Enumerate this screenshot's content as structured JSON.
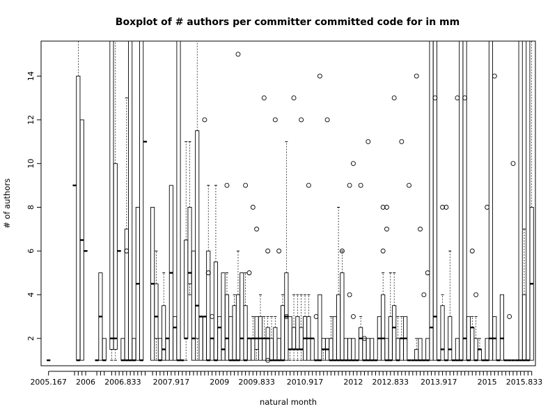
{
  "chart_data": {
    "type": "boxplot",
    "title": "Boxplot of # authors per committer committed code for in mm",
    "xlabel": "natural month",
    "ylabel": "# of authors",
    "ylim": [
      0.75,
      15.6
    ],
    "y_ticks": [
      2,
      4,
      6,
      8,
      10,
      12,
      14
    ],
    "x_tick_labels": [
      "2005.167",
      "2006",
      "2006.833",
      "2007.917",
      "2009",
      "2009.833",
      "2010.917",
      "2012",
      "2012.833",
      "2013.917",
      "2015",
      "2015.833"
    ],
    "outlier_style": "open-circle",
    "boxes": [
      {
        "month": "2005.167",
        "min": 1,
        "q1": 1,
        "median": 1,
        "q3": 1,
        "max": 1
      },
      {
        "month": "2005.75",
        "min": 9,
        "q1": 9,
        "median": 9,
        "q3": 9,
        "max": 9
      },
      {
        "month": "2005.833",
        "min": 1,
        "q1": 1,
        "median": 1,
        "q3": 14,
        "max": 15.6
      },
      {
        "month": "2005.917",
        "min": 1,
        "q1": 1,
        "median": 6.5,
        "q3": 12,
        "max": 12
      },
      {
        "month": "2006",
        "min": 6,
        "q1": 6,
        "median": 6,
        "q3": 6,
        "max": 6
      },
      {
        "month": "2006.25",
        "min": 1,
        "q1": 1,
        "median": 1,
        "q3": 1,
        "max": 1
      },
      {
        "month": "2006.333",
        "min": 1,
        "q1": 1,
        "median": 3,
        "q3": 5,
        "max": 5
      },
      {
        "month": "2006.417",
        "min": 1,
        "q1": 1,
        "median": 1,
        "q3": 2,
        "max": 2
      },
      {
        "month": "2006.583",
        "min": 1,
        "q1": 1.5,
        "median": 2,
        "q3": 15.6,
        "max": 15.6
      },
      {
        "month": "2006.667",
        "min": 1,
        "q1": 1.5,
        "median": 2,
        "q3": 10,
        "max": 15.6
      },
      {
        "month": "2006.75",
        "min": 6,
        "q1": 6,
        "median": 6,
        "q3": 6,
        "max": 6
      },
      {
        "month": "2006.833",
        "min": 1,
        "q1": 1,
        "median": 1,
        "q3": 2,
        "max": 2
      },
      {
        "month": "2006.917",
        "min": 1,
        "q1": 1,
        "median": 1,
        "q3": 7,
        "max": 13,
        "outliers": [
          6
        ]
      },
      {
        "month": "2007",
        "min": 1,
        "q1": 1,
        "median": 1,
        "q3": 15.6,
        "max": 15.6
      },
      {
        "month": "2007.083",
        "min": 1,
        "q1": 1,
        "median": 1,
        "q3": 2,
        "max": 2
      },
      {
        "month": "2007.167",
        "min": 1,
        "q1": 1,
        "median": 4.5,
        "q3": 8,
        "max": 8
      },
      {
        "month": "2007.25",
        "min": 1,
        "q1": 1,
        "median": 1,
        "q3": 15.6,
        "max": 15.6
      },
      {
        "month": "2007.333",
        "min": 11,
        "q1": 11,
        "median": 11,
        "q3": 11,
        "max": 11
      },
      {
        "month": "2007.5",
        "min": 1,
        "q1": 1,
        "median": 4.5,
        "q3": 8,
        "max": 8
      },
      {
        "month": "2007.583",
        "min": 1,
        "q1": 2,
        "median": 3,
        "q3": 4.5,
        "max": 6
      },
      {
        "month": "2007.667",
        "min": 1,
        "q1": 1,
        "median": 1,
        "q3": 2,
        "max": 2
      },
      {
        "month": "2007.75",
        "min": 1,
        "q1": 1,
        "median": 1.5,
        "q3": 3.5,
        "max": 5
      },
      {
        "month": "2007.833",
        "min": 1,
        "q1": 1,
        "median": 2,
        "q3": 2,
        "max": 2
      },
      {
        "month": "2007.917",
        "min": 1,
        "q1": 1,
        "median": 5,
        "q3": 9,
        "max": 9
      },
      {
        "month": "2008",
        "min": 1,
        "q1": 1,
        "median": 2.5,
        "q3": 3,
        "max": 3
      },
      {
        "month": "2008.083",
        "min": 1,
        "q1": 1,
        "median": 1,
        "q3": 15.6,
        "max": 15.6
      },
      {
        "month": "2008.167",
        "min": 1,
        "q1": 1,
        "median": 1,
        "q3": 1,
        "max": 1
      },
      {
        "month": "2008.25",
        "min": 1,
        "q1": 2,
        "median": 2,
        "q3": 6.5,
        "max": 11
      },
      {
        "month": "2008.333",
        "min": 4,
        "q1": 4.5,
        "median": 5,
        "q3": 8,
        "max": 11
      },
      {
        "month": "2008.417",
        "min": 1,
        "q1": 1,
        "median": 2,
        "q3": 6,
        "max": 6
      },
      {
        "month": "2008.5",
        "min": 1,
        "q1": 2,
        "median": 3.5,
        "q3": 11.5,
        "max": 15.6
      },
      {
        "month": "2008.583",
        "min": 1,
        "q1": 1,
        "median": 3,
        "q3": 3,
        "max": 3
      },
      {
        "month": "2008.667",
        "min": 1,
        "q1": 1,
        "median": 3,
        "q3": 3,
        "max": 3,
        "outliers": [
          12
        ]
      },
      {
        "month": "2008.75",
        "min": 1,
        "q1": 1,
        "median": 1,
        "q3": 6,
        "max": 9,
        "outliers": [
          5
        ]
      },
      {
        "month": "2008.833",
        "min": 1,
        "q1": 1,
        "median": 2,
        "q3": 2,
        "max": 2,
        "outliers": [
          3
        ]
      },
      {
        "month": "2008.917",
        "min": 1,
        "q1": 1,
        "median": 1,
        "q3": 5.5,
        "max": 9
      },
      {
        "month": "2009",
        "min": 1,
        "q1": 1,
        "median": 2.5,
        "q3": 3,
        "max": 3
      },
      {
        "month": "2009.083",
        "min": 1,
        "q1": 1,
        "median": 1.5,
        "q3": 5,
        "max": 5
      },
      {
        "month": "2009.167",
        "min": 1,
        "q1": 1,
        "median": 2,
        "q3": 4,
        "max": 5,
        "outliers": [
          9
        ]
      },
      {
        "month": "2009.25",
        "min": 1,
        "q1": 1,
        "median": 1,
        "q3": 3,
        "max": 3
      },
      {
        "month": "2009.333",
        "min": 1,
        "q1": 1,
        "median": 1,
        "q3": 3.5,
        "max": 4
      },
      {
        "month": "2009.417",
        "min": 1,
        "q1": 1,
        "median": 1,
        "q3": 4,
        "max": 6,
        "outliers": [
          15
        ]
      },
      {
        "month": "2009.5",
        "min": 1,
        "q1": 1,
        "median": 2,
        "q3": 5,
        "max": 5
      },
      {
        "month": "2009.583",
        "min": 1,
        "q1": 1,
        "median": 1,
        "q3": 3.5,
        "max": 5,
        "outliers": [
          9
        ]
      },
      {
        "month": "2009.667",
        "min": 1,
        "q1": 1,
        "median": 2,
        "q3": 2,
        "max": 2,
        "outliers": [
          5
        ]
      },
      {
        "month": "2009.75",
        "min": 1,
        "q1": 1,
        "median": 2,
        "q3": 2,
        "max": 3,
        "outliers": [
          8
        ]
      },
      {
        "month": "2009.833",
        "min": 1,
        "q1": 1.5,
        "median": 2,
        "q3": 3,
        "max": 3,
        "outliers": [
          7
        ]
      },
      {
        "month": "2009.917",
        "min": 1,
        "q1": 1,
        "median": 2,
        "q3": 3,
        "max": 4
      },
      {
        "month": "2010",
        "min": 1,
        "q1": 1,
        "median": 2,
        "q3": 2,
        "max": 3,
        "outliers": [
          13
        ]
      },
      {
        "month": "2010.083",
        "min": 1,
        "q1": 1,
        "median": 2,
        "q3": 2.5,
        "max": 3,
        "outliers": [
          6,
          1
        ]
      },
      {
        "month": "2010.167",
        "min": 1,
        "q1": 1,
        "median": 1,
        "q3": 2,
        "max": 3
      },
      {
        "month": "2010.25",
        "min": 1,
        "q1": 1,
        "median": 1,
        "q3": 2.5,
        "max": 3,
        "outliers": [
          12
        ]
      },
      {
        "month": "2010.333",
        "min": 1,
        "q1": 1,
        "median": 1,
        "q3": 2,
        "max": 2,
        "outliers": [
          6
        ]
      },
      {
        "month": "2010.417",
        "min": 1,
        "q1": 1,
        "median": 1,
        "q3": 3.5,
        "max": 4
      },
      {
        "month": "2010.5",
        "min": 1,
        "q1": 1,
        "median": 3,
        "q3": 5,
        "max": 11,
        "outliers": [
          3
        ]
      },
      {
        "month": "2010.583",
        "min": 1,
        "q1": 1.5,
        "median": 1.5,
        "q3": 3,
        "max": 3
      },
      {
        "month": "2010.667",
        "min": 1,
        "q1": 1.5,
        "median": 1.5,
        "q3": 2.5,
        "max": 4,
        "outliers": [
          13
        ]
      },
      {
        "month": "2010.75",
        "min": 1,
        "q1": 1.5,
        "median": 1.5,
        "q3": 3,
        "max": 4
      },
      {
        "month": "2010.833",
        "min": 1,
        "q1": 1.5,
        "median": 1.5,
        "q3": 2.5,
        "max": 4,
        "outliers": [
          12
        ]
      },
      {
        "month": "2010.917",
        "min": 1,
        "q1": 1,
        "median": 2,
        "q3": 3,
        "max": 4
      },
      {
        "month": "2011",
        "min": 1,
        "q1": 1,
        "median": 2,
        "q3": 3,
        "max": 4,
        "outliers": [
          9
        ]
      },
      {
        "month": "2011.083",
        "min": 1,
        "q1": 1,
        "median": 2,
        "q3": 2,
        "max": 2
      },
      {
        "month": "2011.167",
        "min": 1,
        "q1": 1,
        "median": 1,
        "q3": 1,
        "max": 1,
        "outliers": [
          3
        ]
      },
      {
        "month": "2011.25",
        "min": 1,
        "q1": 1,
        "median": 1,
        "q3": 4,
        "max": 4,
        "outliers": [
          14
        ]
      },
      {
        "month": "2011.333",
        "min": 1,
        "q1": 1.5,
        "median": 1.5,
        "q3": 2,
        "max": 2
      },
      {
        "month": "2011.417",
        "min": 1,
        "q1": 1,
        "median": 1.5,
        "q3": 2,
        "max": 2,
        "outliers": [
          12
        ]
      },
      {
        "month": "2011.5",
        "min": 1,
        "q1": 1,
        "median": 1,
        "q3": 2,
        "max": 3
      },
      {
        "month": "2011.583",
        "min": 1,
        "q1": 1,
        "median": 1,
        "q3": 3,
        "max": 3
      },
      {
        "month": "2011.667",
        "min": 1,
        "q1": 1,
        "median": 1,
        "q3": 4,
        "max": 8
      },
      {
        "month": "2011.75",
        "min": 1,
        "q1": 1,
        "median": 1,
        "q3": 5,
        "max": 6,
        "outliers": [
          6
        ]
      },
      {
        "month": "2011.833",
        "min": 1,
        "q1": 1,
        "median": 1,
        "q3": 2,
        "max": 2
      },
      {
        "month": "2011.917",
        "min": 1,
        "q1": 1,
        "median": 1,
        "q3": 2,
        "max": 2,
        "outliers": [
          9,
          4
        ]
      },
      {
        "month": "2012",
        "min": 1,
        "q1": 1,
        "median": 1,
        "q3": 2,
        "max": 2,
        "outliers": [
          10,
          3
        ]
      },
      {
        "month": "2012.083",
        "min": 1,
        "q1": 1,
        "median": 1,
        "q3": 1,
        "max": 1
      },
      {
        "month": "2012.167",
        "min": 1,
        "q1": 1,
        "median": 2,
        "q3": 2.5,
        "max": 3,
        "outliers": [
          9
        ]
      },
      {
        "month": "2012.25",
        "min": 1,
        "q1": 1,
        "median": 1,
        "q3": 2,
        "max": 2,
        "outliers": [
          2
        ]
      },
      {
        "month": "2012.333",
        "min": 1,
        "q1": 1,
        "median": 1,
        "q3": 2,
        "max": 2,
        "outliers": [
          11
        ]
      },
      {
        "month": "2012.417",
        "min": 1,
        "q1": 1,
        "median": 1,
        "q3": 2,
        "max": 2
      },
      {
        "month": "2012.5",
        "min": 1,
        "q1": 1,
        "median": 1,
        "q3": 1,
        "max": 1
      },
      {
        "month": "2012.583",
        "min": 1,
        "q1": 1,
        "median": 2,
        "q3": 3,
        "max": 3
      },
      {
        "month": "2012.667",
        "min": 1,
        "q1": 1,
        "median": 2,
        "q3": 4,
        "max": 5,
        "outliers": [
          8,
          6
        ]
      },
      {
        "month": "2012.75",
        "min": 1,
        "q1": 1,
        "median": 1,
        "q3": 2,
        "max": 2,
        "outliers": [
          8,
          7
        ]
      },
      {
        "month": "2012.833",
        "min": 1,
        "q1": 1,
        "median": 1,
        "q3": 3,
        "max": 5
      },
      {
        "month": "2012.917",
        "min": 1,
        "q1": 1,
        "median": 2.5,
        "q3": 3.5,
        "max": 5,
        "outliers": [
          13
        ]
      },
      {
        "month": "2013",
        "min": 1,
        "q1": 1,
        "median": 1,
        "q3": 2,
        "max": 3
      },
      {
        "month": "2013.083",
        "min": 1,
        "q1": 1,
        "median": 2,
        "q3": 2,
        "max": 3,
        "outliers": [
          11
        ]
      },
      {
        "month": "2013.167",
        "min": 1,
        "q1": 1,
        "median": 2,
        "q3": 3,
        "max": 3
      },
      {
        "month": "2013.25",
        "min": 1,
        "q1": 1,
        "median": 1,
        "q3": 1,
        "max": 1,
        "outliers": [
          9
        ]
      },
      {
        "month": "2013.333",
        "min": 1,
        "q1": 1,
        "median": 1,
        "q3": 1,
        "max": 1
      },
      {
        "month": "2013.417",
        "min": 1,
        "q1": 1,
        "median": 1,
        "q3": 1.5,
        "max": 2,
        "outliers": [
          14
        ]
      },
      {
        "month": "2013.5",
        "min": 1,
        "q1": 1,
        "median": 1,
        "q3": 2,
        "max": 2,
        "outliers": [
          7
        ]
      },
      {
        "month": "2013.583",
        "min": 1,
        "q1": 1,
        "median": 1,
        "q3": 1,
        "max": 1,
        "outliers": [
          4
        ]
      },
      {
        "month": "2013.667",
        "min": 1,
        "q1": 1,
        "median": 1,
        "q3": 2,
        "max": 2,
        "outliers": [
          5
        ]
      },
      {
        "month": "2013.75",
        "min": 1,
        "q1": 1,
        "median": 2.5,
        "q3": 15.6,
        "max": 15.6
      },
      {
        "month": "2013.833",
        "min": 1,
        "q1": 1,
        "median": 3,
        "q3": 15.6,
        "max": 15.6,
        "outliers": [
          13
        ]
      },
      {
        "month": "2013.917",
        "min": 1,
        "q1": 1,
        "median": 1,
        "q3": 1,
        "max": 1
      },
      {
        "month": "2014",
        "min": 1,
        "q1": 1,
        "median": 1.5,
        "q3": 3.5,
        "max": 4,
        "outliers": [
          8
        ]
      },
      {
        "month": "2014.083",
        "min": 1,
        "q1": 1,
        "median": 1,
        "q3": 1,
        "max": 1,
        "outliers": [
          8
        ]
      },
      {
        "month": "2014.167",
        "min": 1,
        "q1": 1,
        "median": 1.5,
        "q3": 3,
        "max": 6
      },
      {
        "month": "2014.25",
        "min": 1,
        "q1": 1,
        "median": 1,
        "q3": 1,
        "max": 1
      },
      {
        "month": "2014.333",
        "min": 1,
        "q1": 1,
        "median": 1,
        "q3": 2,
        "max": 2,
        "outliers": [
          13
        ]
      },
      {
        "month": "2014.417",
        "min": 1,
        "q1": 1,
        "median": 1,
        "q3": 15.6,
        "max": 15.6
      },
      {
        "month": "2014.5",
        "min": 1,
        "q1": 1,
        "median": 2,
        "q3": 15.6,
        "max": 15.6,
        "outliers": [
          13
        ]
      },
      {
        "month": "2014.583",
        "min": 1,
        "q1": 1,
        "median": 1,
        "q3": 3,
        "max": 3
      },
      {
        "month": "2014.667",
        "min": 1,
        "q1": 1,
        "median": 2.5,
        "q3": 2.5,
        "max": 3,
        "outliers": [
          6
        ]
      },
      {
        "month": "2014.75",
        "min": 1,
        "q1": 1,
        "median": 1,
        "q3": 2,
        "max": 3,
        "outliers": [
          4
        ]
      },
      {
        "month": "2014.833",
        "min": 1,
        "q1": 1,
        "median": 1.5,
        "q3": 1.5,
        "max": 2
      },
      {
        "month": "2014.917",
        "min": 1,
        "q1": 1,
        "median": 1,
        "q3": 1,
        "max": 1
      },
      {
        "month": "2015",
        "min": 1,
        "q1": 1,
        "median": 1,
        "q3": 2,
        "max": 2,
        "outliers": [
          8
        ]
      },
      {
        "month": "2015.083",
        "min": 1,
        "q1": 1,
        "median": 2,
        "q3": 15.6,
        "max": 15.6
      },
      {
        "month": "2015.167",
        "min": 1,
        "q1": 1,
        "median": 2,
        "q3": 3,
        "max": 3,
        "outliers": [
          14
        ]
      },
      {
        "month": "2015.25",
        "min": 1,
        "q1": 1,
        "median": 1,
        "q3": 1,
        "max": 1
      },
      {
        "month": "2015.333",
        "min": 1,
        "q1": 1,
        "median": 2,
        "q3": 4,
        "max": 4
      },
      {
        "month": "2015.417",
        "min": 1,
        "q1": 1,
        "median": 1,
        "q3": 1,
        "max": 1
      },
      {
        "month": "2015.5",
        "min": 1,
        "q1": 1,
        "median": 1,
        "q3": 1,
        "max": 1,
        "outliers": [
          3
        ]
      },
      {
        "month": "2015.583",
        "min": 1,
        "q1": 1,
        "median": 1,
        "q3": 1,
        "max": 1,
        "outliers": [
          10
        ]
      },
      {
        "month": "2015.667",
        "min": 1,
        "q1": 1,
        "median": 1,
        "q3": 1,
        "max": 1
      },
      {
        "month": "2015.75",
        "min": 1,
        "q1": 1,
        "median": 1,
        "q3": 15.6,
        "max": 15.6
      },
      {
        "month": "2015.833",
        "min": 1,
        "q1": 1,
        "median": 1,
        "q3": 4,
        "max": 7
      },
      {
        "month": "2015.917",
        "min": 1,
        "q1": 1,
        "median": 1,
        "q3": 15.6,
        "max": 15.6
      },
      {
        "month": "2016",
        "min": 1,
        "q1": 1,
        "median": 4.5,
        "q3": 8,
        "max": 15.6
      }
    ]
  }
}
